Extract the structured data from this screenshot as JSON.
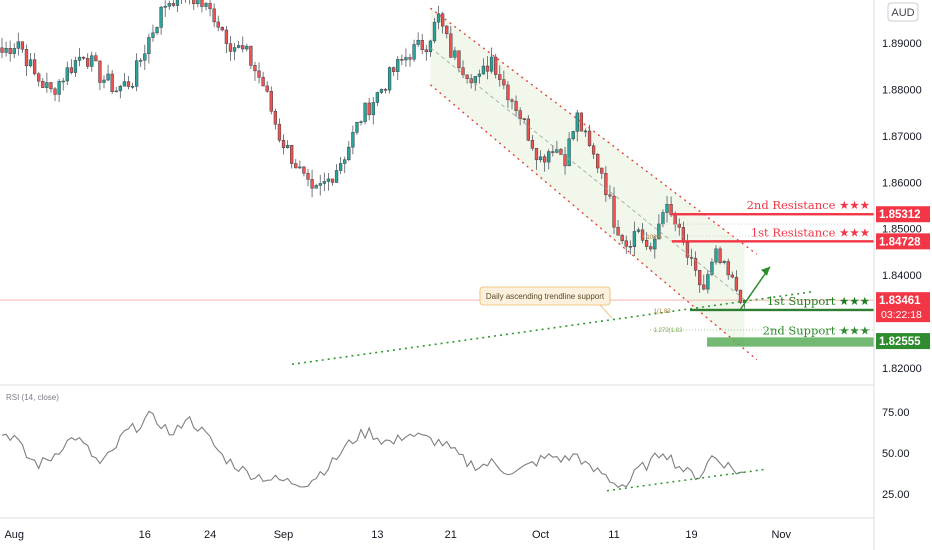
{
  "currency_button": "AUD",
  "rsi_label": "RSI (14, close)",
  "chart_data": [
    {
      "type": "candlestick",
      "y_axis_ticks": [
        "1.89000",
        "1.88000",
        "1.87000",
        "1.86000",
        "1.85000",
        "1.84000",
        "1.82000"
      ],
      "ylim": [
        1.8155,
        1.9015
      ],
      "x_axis_ticks": [
        "Aug",
        "16",
        "24",
        "Sep",
        "13",
        "21",
        "Oct",
        "11",
        "19",
        "Nov"
      ],
      "close_key_points": [
        [
          0,
          1.888
        ],
        [
          4,
          1.8905
        ],
        [
          8,
          1.883
        ],
        [
          12,
          1.8795
        ],
        [
          16,
          1.884
        ],
        [
          20,
          1.888
        ],
        [
          24,
          1.883
        ],
        [
          28,
          1.88
        ],
        [
          32,
          1.882
        ],
        [
          36,
          1.891
        ],
        [
          40,
          1.8985
        ],
        [
          44,
          1.901
        ],
        [
          48,
          1.899
        ],
        [
          52,
          1.896
        ],
        [
          56,
          1.89
        ],
        [
          60,
          1.8875
        ],
        [
          64,
          1.881
        ],
        [
          68,
          1.87
        ],
        [
          72,
          1.864
        ],
        [
          76,
          1.857
        ],
        [
          80,
          1.8605
        ],
        [
          84,
          1.866
        ],
        [
          88,
          1.874
        ],
        [
          92,
          1.879
        ],
        [
          96,
          1.884
        ],
        [
          100,
          1.888
        ],
        [
          104,
          1.89
        ],
        [
          107,
          1.8955
        ],
        [
          110,
          1.888
        ],
        [
          114,
          1.884
        ],
        [
          117,
          1.882
        ],
        [
          120,
          1.887
        ],
        [
          123,
          1.881
        ],
        [
          126,
          1.8765
        ],
        [
          129,
          1.8705
        ],
        [
          132,
          1.865
        ],
        [
          135,
          1.868
        ],
        [
          138,
          1.8655
        ],
        [
          141,
          1.874
        ],
        [
          144,
          1.867
        ],
        [
          147,
          1.8625
        ],
        [
          150,
          1.852
        ],
        [
          153,
          1.847
        ],
        [
          156,
          1.85
        ],
        [
          159,
          1.844
        ],
        [
          162,
          1.855
        ],
        [
          165,
          1.851
        ],
        [
          168,
          1.844
        ],
        [
          170,
          1.8395
        ],
        [
          172,
          1.837
        ],
        [
          175,
          1.844
        ],
        [
          178,
          1.8395
        ],
        [
          180,
          1.837
        ],
        [
          182,
          1.8346
        ]
      ],
      "price_labels": [
        {
          "label": "2nd Resistance",
          "stars": "★★★",
          "value": "1.85312",
          "color": "#f23645"
        },
        {
          "label": "1st Resistance",
          "stars": "★★★",
          "value": "1.84728",
          "color": "#f23645"
        },
        {
          "label": "current",
          "stars": "",
          "value": "1.83461",
          "color": "#f23645",
          "countdown": "03:22:18"
        },
        {
          "label": "1st Support",
          "stars": "★★★",
          "value": "",
          "color": "#1e7d1e"
        },
        {
          "label": "2nd Support",
          "stars": "★★★",
          "value": "1.82555",
          "color": "#2e8b2e"
        }
      ],
      "fib_labels": [
        "1(1.83",
        "1.272(1.83",
        "100%"
      ],
      "annotation": "Daily ascending trendline support",
      "colors": {
        "up": "#26a69a",
        "down": "#ef5350",
        "resistance": "#f23645",
        "support": "#2e7d32",
        "channel": "#e53935"
      }
    },
    {
      "type": "line",
      "name": "RSI (14, close)",
      "y_axis_ticks": [
        "75.00",
        "50.00",
        "25.00"
      ],
      "ylim": [
        15,
        85
      ],
      "key_points": [
        [
          0,
          62
        ],
        [
          3,
          60
        ],
        [
          6,
          48
        ],
        [
          9,
          43
        ],
        [
          12,
          47
        ],
        [
          15,
          55
        ],
        [
          18,
          60
        ],
        [
          21,
          52
        ],
        [
          24,
          43
        ],
        [
          27,
          50
        ],
        [
          30,
          62
        ],
        [
          33,
          66
        ],
        [
          36,
          72
        ],
        [
          39,
          68
        ],
        [
          42,
          60
        ],
        [
          45,
          72
        ],
        [
          48,
          66
        ],
        [
          51,
          58
        ],
        [
          54,
          48
        ],
        [
          57,
          43
        ],
        [
          60,
          38
        ],
        [
          63,
          36
        ],
        [
          66,
          34
        ],
        [
          69,
          33
        ],
        [
          72,
          32
        ],
        [
          75,
          32
        ],
        [
          78,
          38
        ],
        [
          81,
          44
        ],
        [
          84,
          53
        ],
        [
          87,
          60
        ],
        [
          90,
          63
        ],
        [
          93,
          58
        ],
        [
          96,
          56
        ],
        [
          99,
          62
        ],
        [
          102,
          60
        ],
        [
          105,
          58
        ],
        [
          108,
          56
        ],
        [
          111,
          50
        ],
        [
          114,
          44
        ],
        [
          117,
          42
        ],
        [
          120,
          44
        ],
        [
          123,
          40
        ],
        [
          126,
          38
        ],
        [
          129,
          42
        ],
        [
          132,
          46
        ],
        [
          135,
          48
        ],
        [
          138,
          46
        ],
        [
          141,
          49
        ],
        [
          144,
          40
        ],
        [
          147,
          38
        ],
        [
          150,
          32
        ],
        [
          153,
          30
        ],
        [
          156,
          40
        ],
        [
          159,
          44
        ],
        [
          162,
          52
        ],
        [
          165,
          44
        ],
        [
          168,
          38
        ],
        [
          171,
          36
        ],
        [
          174,
          48
        ],
        [
          177,
          44
        ],
        [
          180,
          39
        ],
        [
          182,
          37
        ]
      ]
    }
  ]
}
